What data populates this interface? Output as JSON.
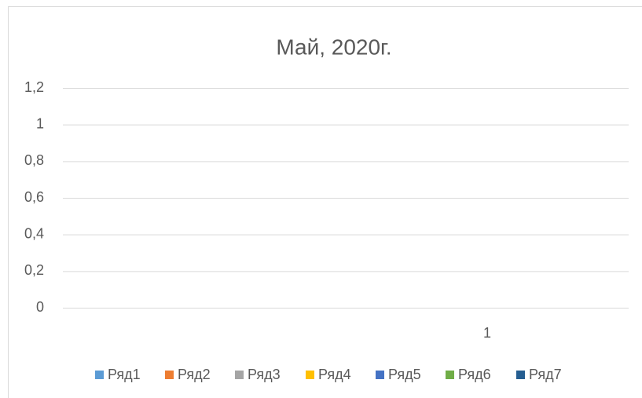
{
  "chart_data": {
    "type": "bar",
    "title": "Май, 2020г.",
    "categories": [
      null,
      "1"
    ],
    "series": [
      {
        "name": "Ряд1",
        "color": "#5b9bd5",
        "values": [
          null,
          null
        ]
      },
      {
        "name": "Ряд2",
        "color": "#ed7d31",
        "values": [
          null,
          null
        ]
      },
      {
        "name": "Ряд3",
        "color": "#a5a5a5",
        "values": [
          null,
          null
        ]
      },
      {
        "name": "Ряд4",
        "color": "#ffc000",
        "values": [
          null,
          null
        ]
      },
      {
        "name": "Ряд5",
        "color": "#4472c4",
        "values": [
          null,
          null
        ]
      },
      {
        "name": "Ряд6",
        "color": "#70ad47",
        "values": [
          null,
          null
        ]
      },
      {
        "name": "Ряд7",
        "color": "#255e91",
        "values": [
          null,
          null
        ]
      }
    ],
    "ylim": [
      0,
      1.2
    ],
    "yticks": [
      0,
      {
        "value": 0.2,
        "label": "0,2"
      },
      {
        "value": 0.4,
        "label": "0,4"
      },
      {
        "value": 0.6,
        "label": "0,6"
      },
      {
        "value": 0.8,
        "label": "0,8"
      },
      1,
      {
        "value": 1.2,
        "label": "1,2"
      }
    ],
    "grid": true,
    "legend": "bottom"
  }
}
